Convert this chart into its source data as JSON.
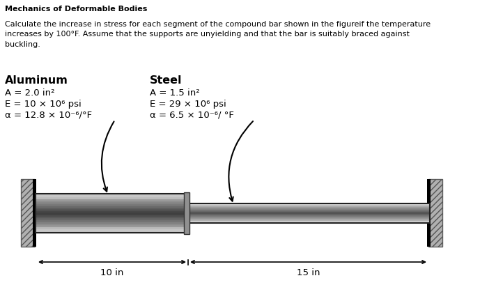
{
  "title": "Mechanics of Deformable Bodies",
  "problem_text": "Calculate the increase in stress for each segment of the compound bar shown in the figureif the temperature\nincreases by 100°F. Assume that the supports are unyielding and that the bar is suitably braced against\nbuckling.",
  "aluminum_label": "Aluminum",
  "aluminum_A": "A = 2.0 in²",
  "aluminum_E": "E = 10 × 10⁶ psi",
  "aluminum_alpha": "α = 12.8 × 10⁻⁶/°F",
  "steel_label": "Steel",
  "steel_A": "A = 1.5 in²",
  "steel_E": "E = 29 × 10⁶ psi",
  "steel_alpha": "α = 6.5 × 10⁻⁶/ °F",
  "dim1": "10 in",
  "dim2": "15 in",
  "bg_color": "#ffffff",
  "text_color": "#000000",
  "title_fontsize": 8.0,
  "body_fontsize": 8.0,
  "label_fontsize": 11.5,
  "prop_fontsize": 9.5
}
